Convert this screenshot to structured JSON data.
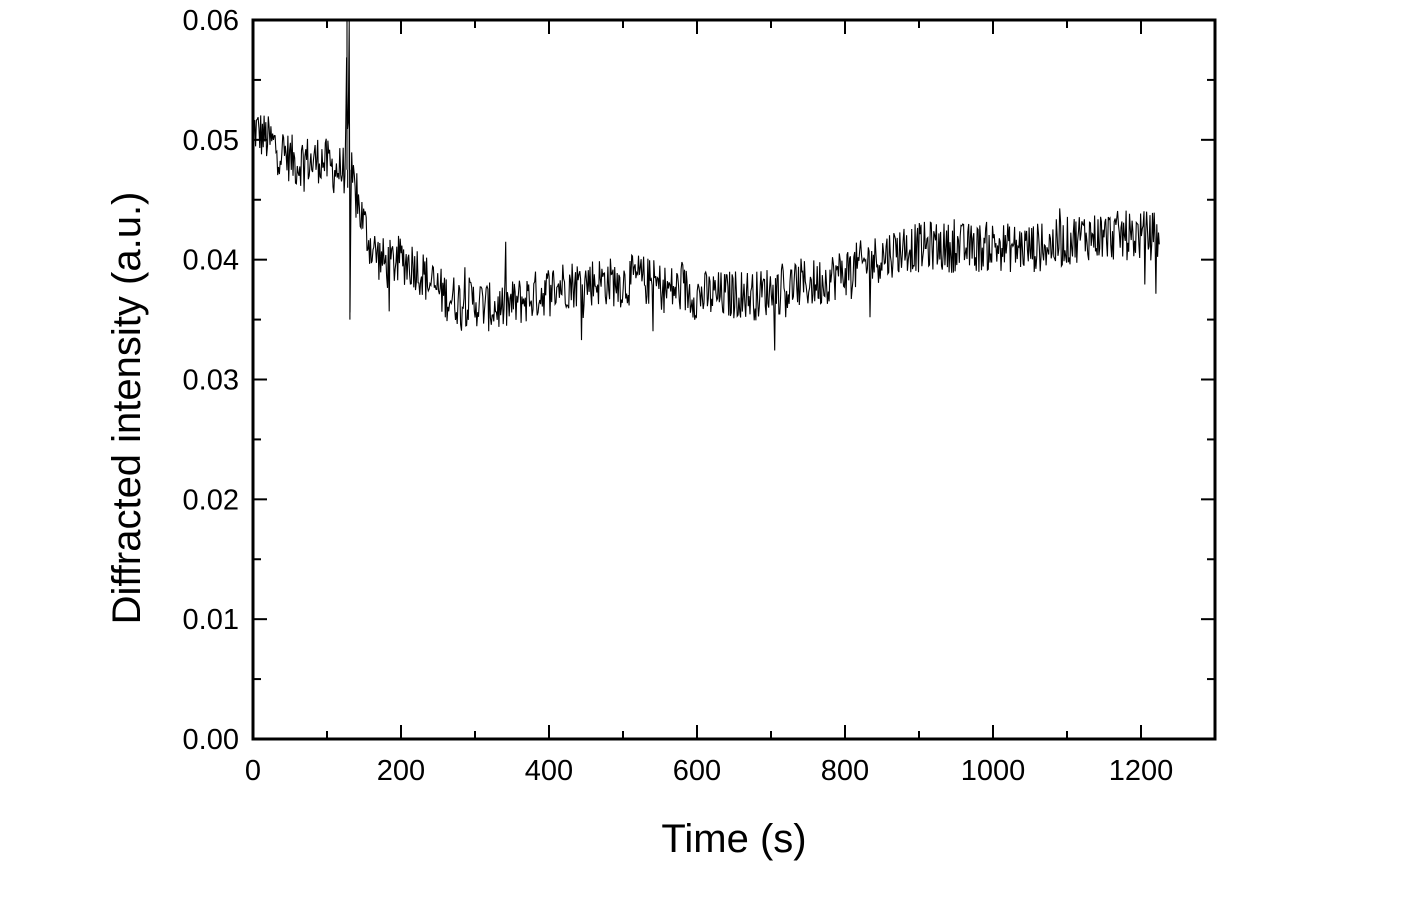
{
  "chart_data": {
    "type": "line",
    "title": "",
    "xlabel": "Time (s)",
    "ylabel": "Diffracted  intensity (a.u.)",
    "xlim": [
      0,
      1300
    ],
    "ylim": [
      0.0,
      0.06
    ],
    "x_major_ticks": [
      0,
      200,
      400,
      600,
      800,
      1000,
      1200
    ],
    "x_tick_labels": [
      "0",
      "200",
      "400",
      "600",
      "800",
      "1000",
      "1200"
    ],
    "y_major_ticks": [
      0.0,
      0.01,
      0.02,
      0.03,
      0.04,
      0.05,
      0.06
    ],
    "y_tick_labels": [
      "0.00",
      "0.01",
      "0.02",
      "0.03",
      "0.04",
      "0.05",
      "0.06"
    ],
    "grid": false,
    "legend": "none",
    "line_color": "#000000",
    "series": [
      {
        "points": [
          [
            0,
            0.051
          ],
          [
            10,
            0.0505
          ],
          [
            20,
            0.05
          ],
          [
            30,
            0.0495
          ],
          [
            40,
            0.049
          ],
          [
            50,
            0.0485
          ],
          [
            60,
            0.048
          ],
          [
            70,
            0.0485
          ],
          [
            80,
            0.048
          ],
          [
            90,
            0.0485
          ],
          [
            100,
            0.048
          ],
          [
            110,
            0.0475
          ],
          [
            120,
            0.0475
          ],
          [
            125,
            0.0475
          ],
          [
            127,
            0.06
          ],
          [
            128,
            0.046
          ],
          [
            130,
            0.06
          ],
          [
            131,
            0.035
          ],
          [
            133,
            0.047
          ],
          [
            140,
            0.045
          ],
          [
            150,
            0.043
          ],
          [
            160,
            0.041
          ],
          [
            180,
            0.0395
          ],
          [
            200,
            0.04
          ],
          [
            220,
            0.0395
          ],
          [
            240,
            0.038
          ],
          [
            260,
            0.037
          ],
          [
            280,
            0.0365
          ],
          [
            300,
            0.0365
          ],
          [
            320,
            0.036
          ],
          [
            340,
            0.036
          ],
          [
            360,
            0.0365
          ],
          [
            380,
            0.037
          ],
          [
            400,
            0.0375
          ],
          [
            420,
            0.038
          ],
          [
            440,
            0.038
          ],
          [
            460,
            0.0382
          ],
          [
            480,
            0.0382
          ],
          [
            500,
            0.038
          ],
          [
            520,
            0.0385
          ],
          [
            540,
            0.038
          ],
          [
            560,
            0.0375
          ],
          [
            580,
            0.0375
          ],
          [
            600,
            0.037
          ],
          [
            620,
            0.037
          ],
          [
            640,
            0.037
          ],
          [
            660,
            0.0372
          ],
          [
            680,
            0.037
          ],
          [
            700,
            0.0375
          ],
          [
            720,
            0.0375
          ],
          [
            740,
            0.038
          ],
          [
            760,
            0.038
          ],
          [
            780,
            0.0385
          ],
          [
            800,
            0.039
          ],
          [
            820,
            0.0395
          ],
          [
            840,
            0.04
          ],
          [
            860,
            0.0405
          ],
          [
            880,
            0.041
          ],
          [
            900,
            0.041
          ],
          [
            920,
            0.0412
          ],
          [
            940,
            0.041
          ],
          [
            960,
            0.041
          ],
          [
            980,
            0.041
          ],
          [
            1000,
            0.0412
          ],
          [
            1020,
            0.041
          ],
          [
            1040,
            0.041
          ],
          [
            1060,
            0.041
          ],
          [
            1080,
            0.0412
          ],
          [
            1100,
            0.0415
          ],
          [
            1120,
            0.042
          ],
          [
            1140,
            0.042
          ],
          [
            1160,
            0.042
          ],
          [
            1180,
            0.042
          ],
          [
            1200,
            0.042
          ],
          [
            1215,
            0.042
          ],
          [
            1225,
            0.042
          ]
        ]
      }
    ]
  }
}
